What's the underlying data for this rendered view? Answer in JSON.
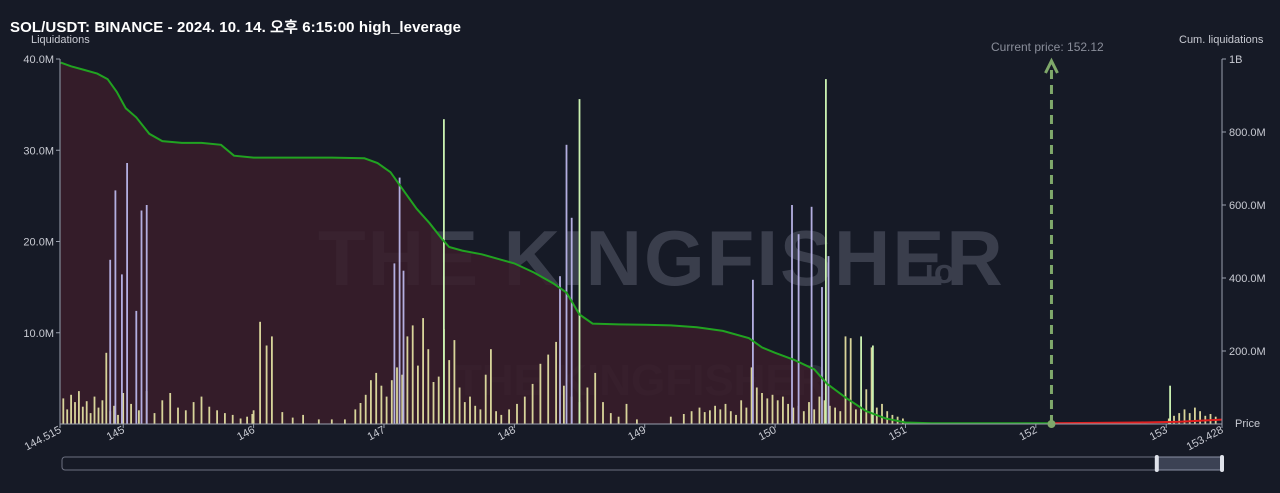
{
  "header": {
    "title": "SOL/USDT: BINANCE - 2024. 10. 14. 오후 6:15:00 high_leverage"
  },
  "colors": {
    "background": "#161a26",
    "cumulative_line": "#21a321",
    "area_fill": "#3a1d2a",
    "short_line": "#e02020",
    "bar_yellow": "#d8d49a",
    "bar_purple": "#b3aee0",
    "bar_green": "#c9f0b0",
    "current_price_marker": "#7fa86a"
  },
  "watermark": {
    "text_main": "THE KINGFISHER",
    "text_suffix": ".io"
  },
  "current_price": {
    "label": "Current price: 152.12",
    "value": 152.12
  },
  "range_slider": {
    "start_fraction": 0.0,
    "end_fraction": 1.0,
    "window_start": 0.943,
    "window_end": 1.0
  },
  "chart_data": {
    "type": "bar",
    "xlim": [
      144.515,
      153.428
    ],
    "y_left": {
      "label": "Liquidations",
      "ylim": [
        0,
        40000000
      ],
      "ticks": [
        "10.0M",
        "20.0M",
        "30.0M",
        "40.0M"
      ],
      "tick_values": [
        10000000,
        20000000,
        30000000,
        40000000
      ]
    },
    "y_right": {
      "label": "Cum. liquidations",
      "ylim": [
        0,
        1000000000
      ],
      "ticks": [
        "200.0M",
        "400.0M",
        "600.0M",
        "800.0M",
        "1B"
      ],
      "tick_values": [
        200000000,
        400000000,
        600000000,
        800000000,
        1000000000
      ]
    },
    "x_axis": {
      "label": "Price",
      "tick_labels": [
        "144.515",
        "145",
        "146",
        "147",
        "148",
        "149",
        "150",
        "151",
        "152",
        "153",
        "153.428"
      ],
      "tick_values": [
        144.515,
        145,
        146,
        147,
        148,
        149,
        150,
        151,
        152,
        153,
        153.428
      ]
    },
    "bars_yellow": [
      [
        144.54,
        2.8
      ],
      [
        144.57,
        1.6
      ],
      [
        144.6,
        3.2
      ],
      [
        144.63,
        2.4
      ],
      [
        144.66,
        3.6
      ],
      [
        144.69,
        1.9
      ],
      [
        144.72,
        2.5
      ],
      [
        144.75,
        1.2
      ],
      [
        144.78,
        3.0
      ],
      [
        144.81,
        1.8
      ],
      [
        144.84,
        2.6
      ],
      [
        144.87,
        7.8
      ],
      [
        144.9,
        1.4
      ],
      [
        144.93,
        2.0
      ],
      [
        144.96,
        1.0
      ],
      [
        145.0,
        3.4
      ],
      [
        145.06,
        2.2
      ],
      [
        145.12,
        1.5
      ],
      [
        145.18,
        3.6
      ],
      [
        145.24,
        1.2
      ],
      [
        145.3,
        2.6
      ],
      [
        145.36,
        3.4
      ],
      [
        145.42,
        1.8
      ],
      [
        145.48,
        1.5
      ],
      [
        145.54,
        2.4
      ],
      [
        145.6,
        3.0
      ],
      [
        145.66,
        1.9
      ],
      [
        145.72,
        1.5
      ],
      [
        145.78,
        1.2
      ],
      [
        145.84,
        1.0
      ],
      [
        145.9,
        0.6
      ],
      [
        146.0,
        1.5
      ],
      [
        145.95,
        0.8
      ],
      [
        145.99,
        1.1
      ],
      [
        146.05,
        11.2
      ],
      [
        146.1,
        8.6
      ],
      [
        146.14,
        9.6
      ],
      [
        146.22,
        1.3
      ],
      [
        146.3,
        0.7
      ],
      [
        146.38,
        1.0
      ],
      [
        146.5,
        0.5
      ],
      [
        146.6,
        0.5
      ],
      [
        146.7,
        0.5
      ],
      [
        146.78,
        1.6
      ],
      [
        146.82,
        2.3
      ],
      [
        146.86,
        3.2
      ],
      [
        146.9,
        4.8
      ],
      [
        146.94,
        5.6
      ],
      [
        146.98,
        4.2
      ],
      [
        147.02,
        3.0
      ],
      [
        147.06,
        4.8
      ],
      [
        147.1,
        6.2
      ],
      [
        147.14,
        5.4
      ],
      [
        147.18,
        9.6
      ],
      [
        147.22,
        10.8
      ],
      [
        147.26,
        6.4
      ],
      [
        147.3,
        11.6
      ],
      [
        147.34,
        8.2
      ],
      [
        147.38,
        4.6
      ],
      [
        147.42,
        5.2
      ],
      [
        147.46,
        10.4
      ],
      [
        147.5,
        7.0
      ],
      [
        147.54,
        9.2
      ],
      [
        147.58,
        4.0
      ],
      [
        147.62,
        2.4
      ],
      [
        147.66,
        3.0
      ],
      [
        147.7,
        2.0
      ],
      [
        147.74,
        1.6
      ],
      [
        147.78,
        5.4
      ],
      [
        147.82,
        8.2
      ],
      [
        147.86,
        1.4
      ],
      [
        147.9,
        1.0
      ],
      [
        147.96,
        1.6
      ],
      [
        148.02,
        2.2
      ],
      [
        148.08,
        3.0
      ],
      [
        148.14,
        4.4
      ],
      [
        148.2,
        6.6
      ],
      [
        148.26,
        7.6
      ],
      [
        148.32,
        9.0
      ],
      [
        148.38,
        4.2
      ],
      [
        148.44,
        3.0
      ],
      [
        148.5,
        2.4
      ],
      [
        148.56,
        4.0
      ],
      [
        148.62,
        5.6
      ],
      [
        148.68,
        2.4
      ],
      [
        148.74,
        1.2
      ],
      [
        148.8,
        0.8
      ],
      [
        148.86,
        2.2
      ],
      [
        148.94,
        0.5
      ],
      [
        149.2,
        0.8
      ],
      [
        149.3,
        1.1
      ],
      [
        149.36,
        1.4
      ],
      [
        149.42,
        1.8
      ],
      [
        149.46,
        1.3
      ],
      [
        149.5,
        1.5
      ],
      [
        149.54,
        2.0
      ],
      [
        149.58,
        1.6
      ],
      [
        149.62,
        2.2
      ],
      [
        149.66,
        1.4
      ],
      [
        149.7,
        1.0
      ],
      [
        149.74,
        2.6
      ],
      [
        149.78,
        1.8
      ],
      [
        149.82,
        6.2
      ],
      [
        149.86,
        4.0
      ],
      [
        149.9,
        3.4
      ],
      [
        149.94,
        2.8
      ],
      [
        149.98,
        3.2
      ],
      [
        150.02,
        2.6
      ],
      [
        150.06,
        3.0
      ],
      [
        150.1,
        2.2
      ],
      [
        150.14,
        1.8
      ],
      [
        150.18,
        2.0
      ],
      [
        150.22,
        1.4
      ],
      [
        150.26,
        2.4
      ],
      [
        150.3,
        1.6
      ],
      [
        150.34,
        3.0
      ],
      [
        150.38,
        2.6
      ],
      [
        150.42,
        2.0
      ],
      [
        150.46,
        1.8
      ],
      [
        150.5,
        1.4
      ],
      [
        150.54,
        9.6
      ],
      [
        150.58,
        9.4
      ],
      [
        150.62,
        1.6
      ],
      [
        150.66,
        1.2
      ],
      [
        150.7,
        3.8
      ],
      [
        150.74,
        8.4
      ],
      [
        150.78,
        1.8
      ],
      [
        150.82,
        2.2
      ],
      [
        150.86,
        1.4
      ],
      [
        150.9,
        1.0
      ],
      [
        150.94,
        0.8
      ],
      [
        150.98,
        0.6
      ],
      [
        153.02,
        0.6
      ],
      [
        153.06,
        0.9
      ],
      [
        153.1,
        1.2
      ],
      [
        153.14,
        1.6
      ],
      [
        153.18,
        1.2
      ],
      [
        153.22,
        1.8
      ],
      [
        153.26,
        1.4
      ],
      [
        153.3,
        0.9
      ],
      [
        153.34,
        1.1
      ],
      [
        153.38,
        0.8
      ]
    ],
    "bars_purple": [
      [
        144.9,
        18.0
      ],
      [
        144.94,
        25.6
      ],
      [
        144.99,
        16.4
      ],
      [
        145.03,
        28.6
      ],
      [
        145.1,
        12.4
      ],
      [
        145.14,
        23.4
      ],
      [
        145.18,
        24.0
      ],
      [
        147.08,
        17.6
      ],
      [
        147.12,
        27.0
      ],
      [
        147.15,
        16.8
      ],
      [
        148.35,
        16.2
      ],
      [
        148.4,
        30.6
      ],
      [
        148.44,
        22.6
      ],
      [
        149.83,
        15.8
      ],
      [
        150.13,
        24.0
      ],
      [
        150.18,
        20.8
      ],
      [
        150.28,
        23.8
      ],
      [
        150.36,
        15.0
      ],
      [
        150.41,
        18.4
      ]
    ],
    "bars_green": [
      [
        147.46,
        33.4
      ],
      [
        148.5,
        35.6
      ],
      [
        150.39,
        37.8
      ],
      [
        150.66,
        9.6
      ],
      [
        150.75,
        8.6
      ],
      [
        153.03,
        4.2
      ]
    ],
    "cumulative_line": [
      [
        144.52,
        990
      ],
      [
        144.6,
        980
      ],
      [
        144.7,
        970
      ],
      [
        144.8,
        960
      ],
      [
        144.88,
        945
      ],
      [
        144.95,
        910
      ],
      [
        145.02,
        865
      ],
      [
        145.1,
        840
      ],
      [
        145.2,
        795
      ],
      [
        145.3,
        775
      ],
      [
        145.45,
        770
      ],
      [
        145.6,
        770
      ],
      [
        145.75,
        765
      ],
      [
        145.85,
        735
      ],
      [
        146.0,
        730
      ],
      [
        146.3,
        730
      ],
      [
        146.6,
        730
      ],
      [
        146.85,
        728
      ],
      [
        146.95,
        715
      ],
      [
        147.05,
        690
      ],
      [
        147.15,
        640
      ],
      [
        147.25,
        590
      ],
      [
        147.35,
        550
      ],
      [
        147.45,
        505
      ],
      [
        147.5,
        485
      ],
      [
        147.6,
        475
      ],
      [
        147.75,
        465
      ],
      [
        147.9,
        450
      ],
      [
        148.0,
        440
      ],
      [
        148.15,
        415
      ],
      [
        148.3,
        385
      ],
      [
        148.4,
        360
      ],
      [
        148.5,
        300
      ],
      [
        148.6,
        275
      ],
      [
        148.8,
        273
      ],
      [
        149.0,
        272
      ],
      [
        149.2,
        270
      ],
      [
        149.4,
        265
      ],
      [
        149.6,
        255
      ],
      [
        149.8,
        235
      ],
      [
        149.9,
        210
      ],
      [
        150.0,
        195
      ],
      [
        150.15,
        175
      ],
      [
        150.3,
        150
      ],
      [
        150.4,
        110
      ],
      [
        150.55,
        70
      ],
      [
        150.7,
        35
      ],
      [
        150.85,
        15
      ],
      [
        151.0,
        4
      ],
      [
        151.2,
        2
      ],
      [
        151.6,
        2
      ],
      [
        152.0,
        2
      ],
      [
        152.12,
        2
      ]
    ],
    "short_line": [
      [
        152.12,
        2
      ],
      [
        152.8,
        4
      ],
      [
        153.1,
        6
      ],
      [
        153.428,
        12
      ]
    ]
  }
}
